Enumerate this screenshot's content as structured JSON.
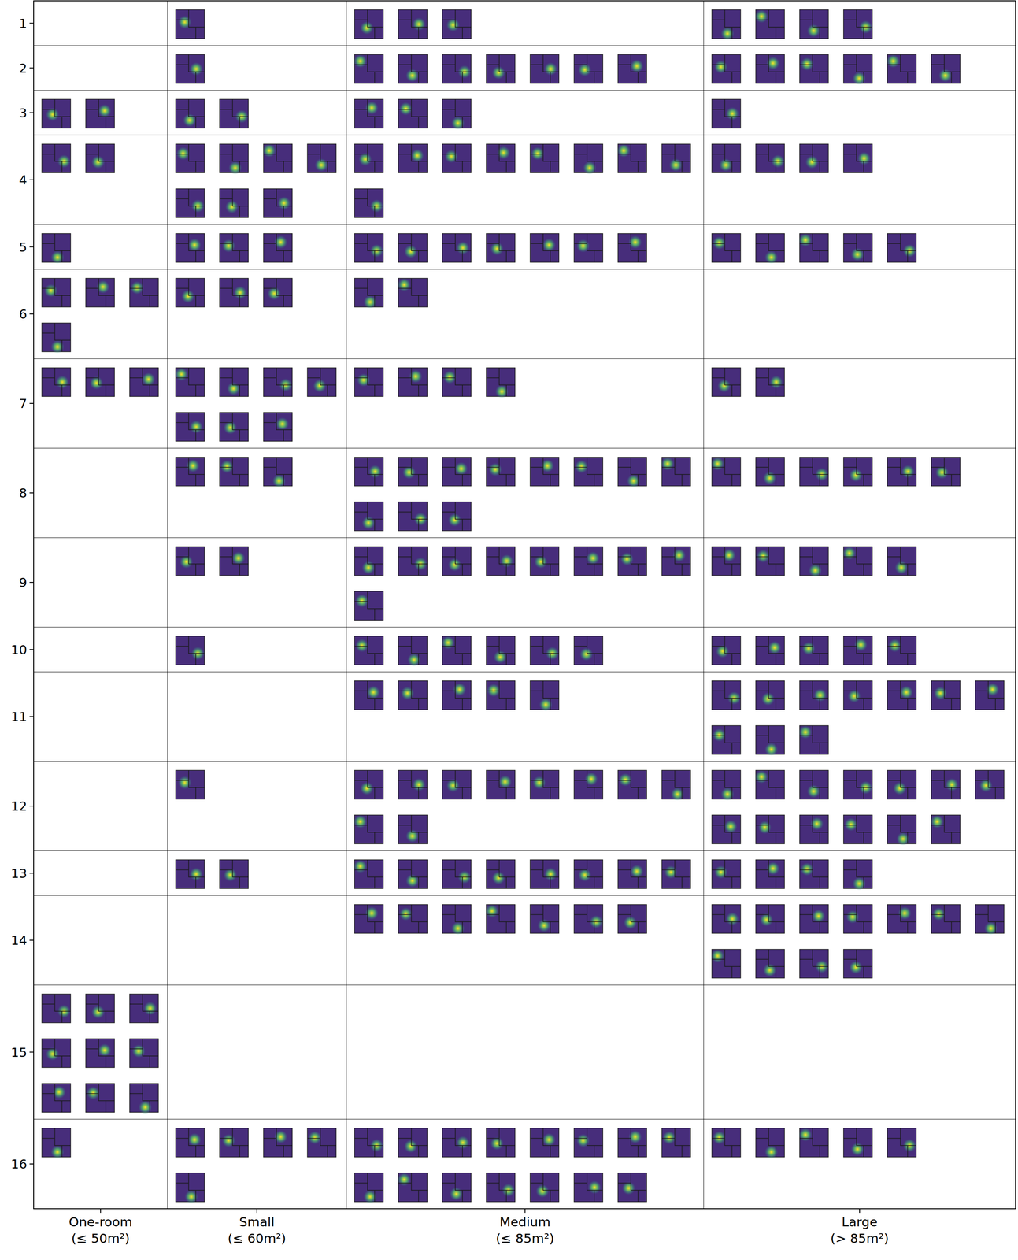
{
  "chart_data": {
    "type": "thumbnail_grid",
    "rows": [
      1,
      2,
      3,
      4,
      5,
      6,
      7,
      8,
      9,
      10,
      11,
      12,
      13,
      14,
      15,
      16
    ],
    "columns": [
      {
        "name": "One-room",
        "label": "(≤ 50m²)"
      },
      {
        "name": "Small",
        "label": "(≤ 60m²)"
      },
      {
        "name": "Medium",
        "label": "(≤ 85m²)"
      },
      {
        "name": "Large",
        "label": "(> 85m²)"
      }
    ],
    "counts": [
      [
        0,
        1,
        3,
        4
      ],
      [
        0,
        1,
        7,
        6
      ],
      [
        2,
        2,
        3,
        1
      ],
      [
        2,
        7,
        9,
        4
      ],
      [
        1,
        3,
        7,
        5
      ],
      [
        4,
        3,
        2,
        0
      ],
      [
        3,
        7,
        4,
        2
      ],
      [
        0,
        3,
        11,
        6
      ],
      [
        0,
        2,
        9,
        5
      ],
      [
        0,
        1,
        6,
        5
      ],
      [
        0,
        0,
        5,
        10
      ],
      [
        0,
        1,
        10,
        13
      ],
      [
        0,
        2,
        8,
        4
      ],
      [
        0,
        0,
        7,
        11
      ],
      [
        9,
        0,
        0,
        0
      ],
      [
        1,
        5,
        15,
        5
      ]
    ]
  }
}
